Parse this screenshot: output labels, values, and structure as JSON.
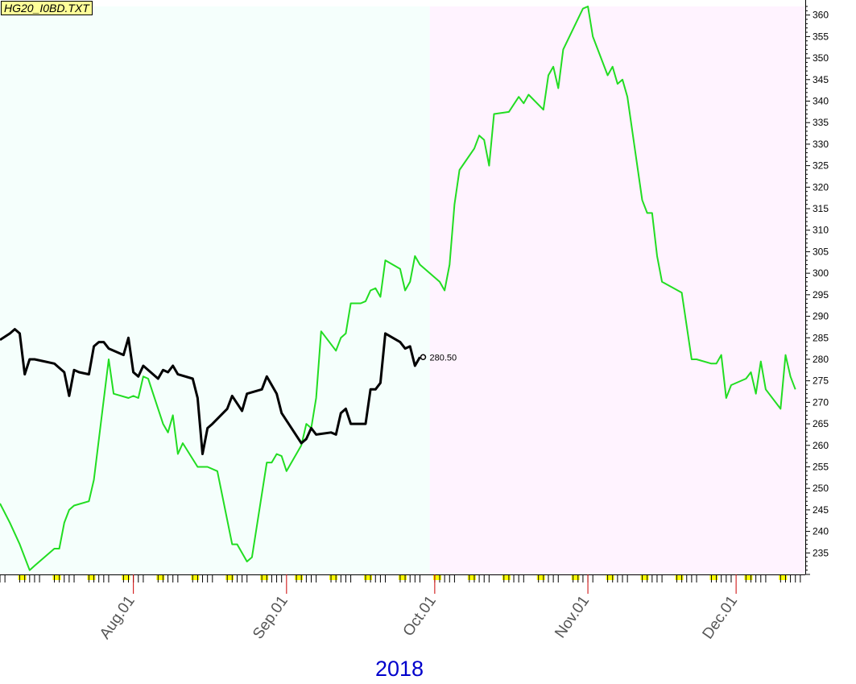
{
  "file_label": "HG20_I0BD.TXT",
  "year_label": "2018",
  "colors": {
    "green_series": "#22dd22",
    "black_series": "#000000",
    "past_background": "#f5fffc",
    "future_background": "#fff3ff",
    "tick_marker": "#ffff00"
  },
  "chart_data": {
    "type": "line",
    "title": "",
    "xlabel": "2018",
    "ylabel": "",
    "ylim": [
      230,
      362
    ],
    "y_ticks": [
      235,
      240,
      245,
      250,
      255,
      260,
      265,
      270,
      275,
      280,
      285,
      290,
      295,
      300,
      305,
      310,
      315,
      320,
      325,
      330,
      335,
      340,
      345,
      350,
      355,
      360
    ],
    "x_range": [
      "2018-07-05",
      "2018-12-15"
    ],
    "x_ticks": [
      {
        "date": "2018-08-01",
        "label": "Aug.01"
      },
      {
        "date": "2018-09-01",
        "label": "Sep.01"
      },
      {
        "date": "2018-10-01",
        "label": "Oct.01"
      },
      {
        "date": "2018-11-01",
        "label": "Nov.01"
      },
      {
        "date": "2018-12-01",
        "label": "Dec.01"
      }
    ],
    "shading_split": "2018-09-30",
    "grid": false,
    "last_value_label": "280.50",
    "series": [
      {
        "id": "green",
        "points": [
          [
            "2018-07-05",
            246.5
          ],
          [
            "2018-07-07",
            242
          ],
          [
            "2018-07-09",
            237
          ],
          [
            "2018-07-11",
            231
          ],
          [
            "2018-07-12",
            232
          ],
          [
            "2018-07-14",
            234
          ],
          [
            "2018-07-16",
            236
          ],
          [
            "2018-07-17",
            236
          ],
          [
            "2018-07-18",
            242
          ],
          [
            "2018-07-19",
            245
          ],
          [
            "2018-07-20",
            246
          ],
          [
            "2018-07-23",
            247
          ],
          [
            "2018-07-24",
            252
          ],
          [
            "2018-07-27",
            280
          ],
          [
            "2018-07-28",
            272
          ],
          [
            "2018-07-31",
            271
          ],
          [
            "2018-08-01",
            271.5
          ],
          [
            "2018-08-02",
            271
          ],
          [
            "2018-08-03",
            276
          ],
          [
            "2018-08-04",
            275.5
          ],
          [
            "2018-08-07",
            265
          ],
          [
            "2018-08-08",
            263
          ],
          [
            "2018-08-09",
            267
          ],
          [
            "2018-08-10",
            258
          ],
          [
            "2018-08-11",
            260.5
          ],
          [
            "2018-08-14",
            255
          ],
          [
            "2018-08-16",
            255
          ],
          [
            "2018-08-18",
            254
          ],
          [
            "2018-08-21",
            237
          ],
          [
            "2018-08-22",
            237
          ],
          [
            "2018-08-24",
            233
          ],
          [
            "2018-08-25",
            234
          ],
          [
            "2018-08-28",
            256
          ],
          [
            "2018-08-29",
            256
          ],
          [
            "2018-08-30",
            258
          ],
          [
            "2018-08-31",
            257.5
          ],
          [
            "2018-09-01",
            254
          ],
          [
            "2018-09-04",
            260
          ],
          [
            "2018-09-05",
            265
          ],
          [
            "2018-09-06",
            264
          ],
          [
            "2018-09-07",
            271
          ],
          [
            "2018-09-08",
            286.5
          ],
          [
            "2018-09-11",
            282
          ],
          [
            "2018-09-12",
            285
          ],
          [
            "2018-09-13",
            286
          ],
          [
            "2018-09-14",
            293
          ],
          [
            "2018-09-16",
            293
          ],
          [
            "2018-09-17",
            293.5
          ],
          [
            "2018-09-18",
            296
          ],
          [
            "2018-09-19",
            296.5
          ],
          [
            "2018-09-20",
            294.5
          ],
          [
            "2018-09-21",
            303
          ],
          [
            "2018-09-24",
            301
          ],
          [
            "2018-09-25",
            296
          ],
          [
            "2018-09-26",
            298
          ],
          [
            "2018-09-27",
            304
          ],
          [
            "2018-09-28",
            302
          ],
          [
            "2018-10-02",
            298
          ],
          [
            "2018-10-03",
            296
          ],
          [
            "2018-10-04",
            302
          ],
          [
            "2018-10-05",
            316
          ],
          [
            "2018-10-06",
            324
          ],
          [
            "2018-10-09",
            329
          ],
          [
            "2018-10-10",
            332
          ],
          [
            "2018-10-11",
            331
          ],
          [
            "2018-10-12",
            325
          ],
          [
            "2018-10-13",
            337
          ],
          [
            "2018-10-16",
            337.5
          ],
          [
            "2018-10-18",
            341
          ],
          [
            "2018-10-19",
            339.5
          ],
          [
            "2018-10-20",
            341.5
          ],
          [
            "2018-10-23",
            338
          ],
          [
            "2018-10-24",
            346
          ],
          [
            "2018-10-25",
            348
          ],
          [
            "2018-10-26",
            343
          ],
          [
            "2018-10-27",
            352
          ],
          [
            "2018-10-31",
            361.5
          ],
          [
            "2018-11-01",
            362
          ],
          [
            "2018-11-02",
            355
          ],
          [
            "2018-11-05",
            346
          ],
          [
            "2018-11-06",
            348
          ],
          [
            "2018-11-07",
            344
          ],
          [
            "2018-11-08",
            345
          ],
          [
            "2018-11-09",
            341
          ],
          [
            "2018-11-12",
            317
          ],
          [
            "2018-11-13",
            314
          ],
          [
            "2018-11-14",
            314
          ],
          [
            "2018-11-15",
            304
          ],
          [
            "2018-11-16",
            298
          ],
          [
            "2018-11-20",
            295.5
          ],
          [
            "2018-11-22",
            280
          ],
          [
            "2018-11-23",
            280
          ],
          [
            "2018-11-26",
            279
          ],
          [
            "2018-11-27",
            279
          ],
          [
            "2018-11-28",
            281
          ],
          [
            "2018-11-29",
            271
          ],
          [
            "2018-11-30",
            274
          ],
          [
            "2018-12-03",
            275.5
          ],
          [
            "2018-12-04",
            277
          ],
          [
            "2018-12-05",
            272
          ],
          [
            "2018-12-06",
            279.5
          ],
          [
            "2018-12-07",
            273
          ],
          [
            "2018-12-10",
            268.5
          ],
          [
            "2018-12-11",
            281
          ],
          [
            "2018-12-12",
            276
          ],
          [
            "2018-12-13",
            273
          ]
        ]
      },
      {
        "id": "black",
        "points": [
          [
            "2018-07-05",
            284.5
          ],
          [
            "2018-07-07",
            286
          ],
          [
            "2018-07-08",
            287
          ],
          [
            "2018-07-09",
            286
          ],
          [
            "2018-07-10",
            276.5
          ],
          [
            "2018-07-11",
            280
          ],
          [
            "2018-07-12",
            280
          ],
          [
            "2018-07-14",
            279.5
          ],
          [
            "2018-07-16",
            279
          ],
          [
            "2018-07-17",
            278
          ],
          [
            "2018-07-18",
            277
          ],
          [
            "2018-07-19",
            271.5
          ],
          [
            "2018-07-20",
            277.5
          ],
          [
            "2018-07-21",
            277
          ],
          [
            "2018-07-23",
            276.5
          ],
          [
            "2018-07-24",
            283
          ],
          [
            "2018-07-25",
            284
          ],
          [
            "2018-07-26",
            284
          ],
          [
            "2018-07-27",
            282.5
          ],
          [
            "2018-07-30",
            281
          ],
          [
            "2018-07-31",
            285
          ],
          [
            "2018-08-01",
            277
          ],
          [
            "2018-08-02",
            276
          ],
          [
            "2018-08-03",
            278.5
          ],
          [
            "2018-08-06",
            275.5
          ],
          [
            "2018-08-07",
            277.5
          ],
          [
            "2018-08-08",
            277
          ],
          [
            "2018-08-09",
            278.5
          ],
          [
            "2018-08-10",
            276.5
          ],
          [
            "2018-08-13",
            275.5
          ],
          [
            "2018-08-14",
            271
          ],
          [
            "2018-08-15",
            258
          ],
          [
            "2018-08-16",
            264
          ],
          [
            "2018-08-17",
            265
          ],
          [
            "2018-08-20",
            268.5
          ],
          [
            "2018-08-21",
            271.5
          ],
          [
            "2018-08-23",
            268
          ],
          [
            "2018-08-24",
            272
          ],
          [
            "2018-08-27",
            273
          ],
          [
            "2018-08-28",
            276
          ],
          [
            "2018-08-30",
            272
          ],
          [
            "2018-08-31",
            267.5
          ],
          [
            "2018-09-04",
            260.5
          ],
          [
            "2018-09-05",
            261.5
          ],
          [
            "2018-09-06",
            264
          ],
          [
            "2018-09-07",
            262.5
          ],
          [
            "2018-09-10",
            263
          ],
          [
            "2018-09-11",
            262.5
          ],
          [
            "2018-09-12",
            267.5
          ],
          [
            "2018-09-13",
            268.5
          ],
          [
            "2018-09-14",
            265
          ],
          [
            "2018-09-17",
            265
          ],
          [
            "2018-09-18",
            273
          ],
          [
            "2018-09-19",
            273
          ],
          [
            "2018-09-20",
            274.5
          ],
          [
            "2018-09-21",
            286
          ],
          [
            "2018-09-24",
            284
          ],
          [
            "2018-09-25",
            282.5
          ],
          [
            "2018-09-26",
            283
          ],
          [
            "2018-09-27",
            278.5
          ],
          [
            "2018-09-28",
            280.5
          ]
        ]
      }
    ]
  }
}
